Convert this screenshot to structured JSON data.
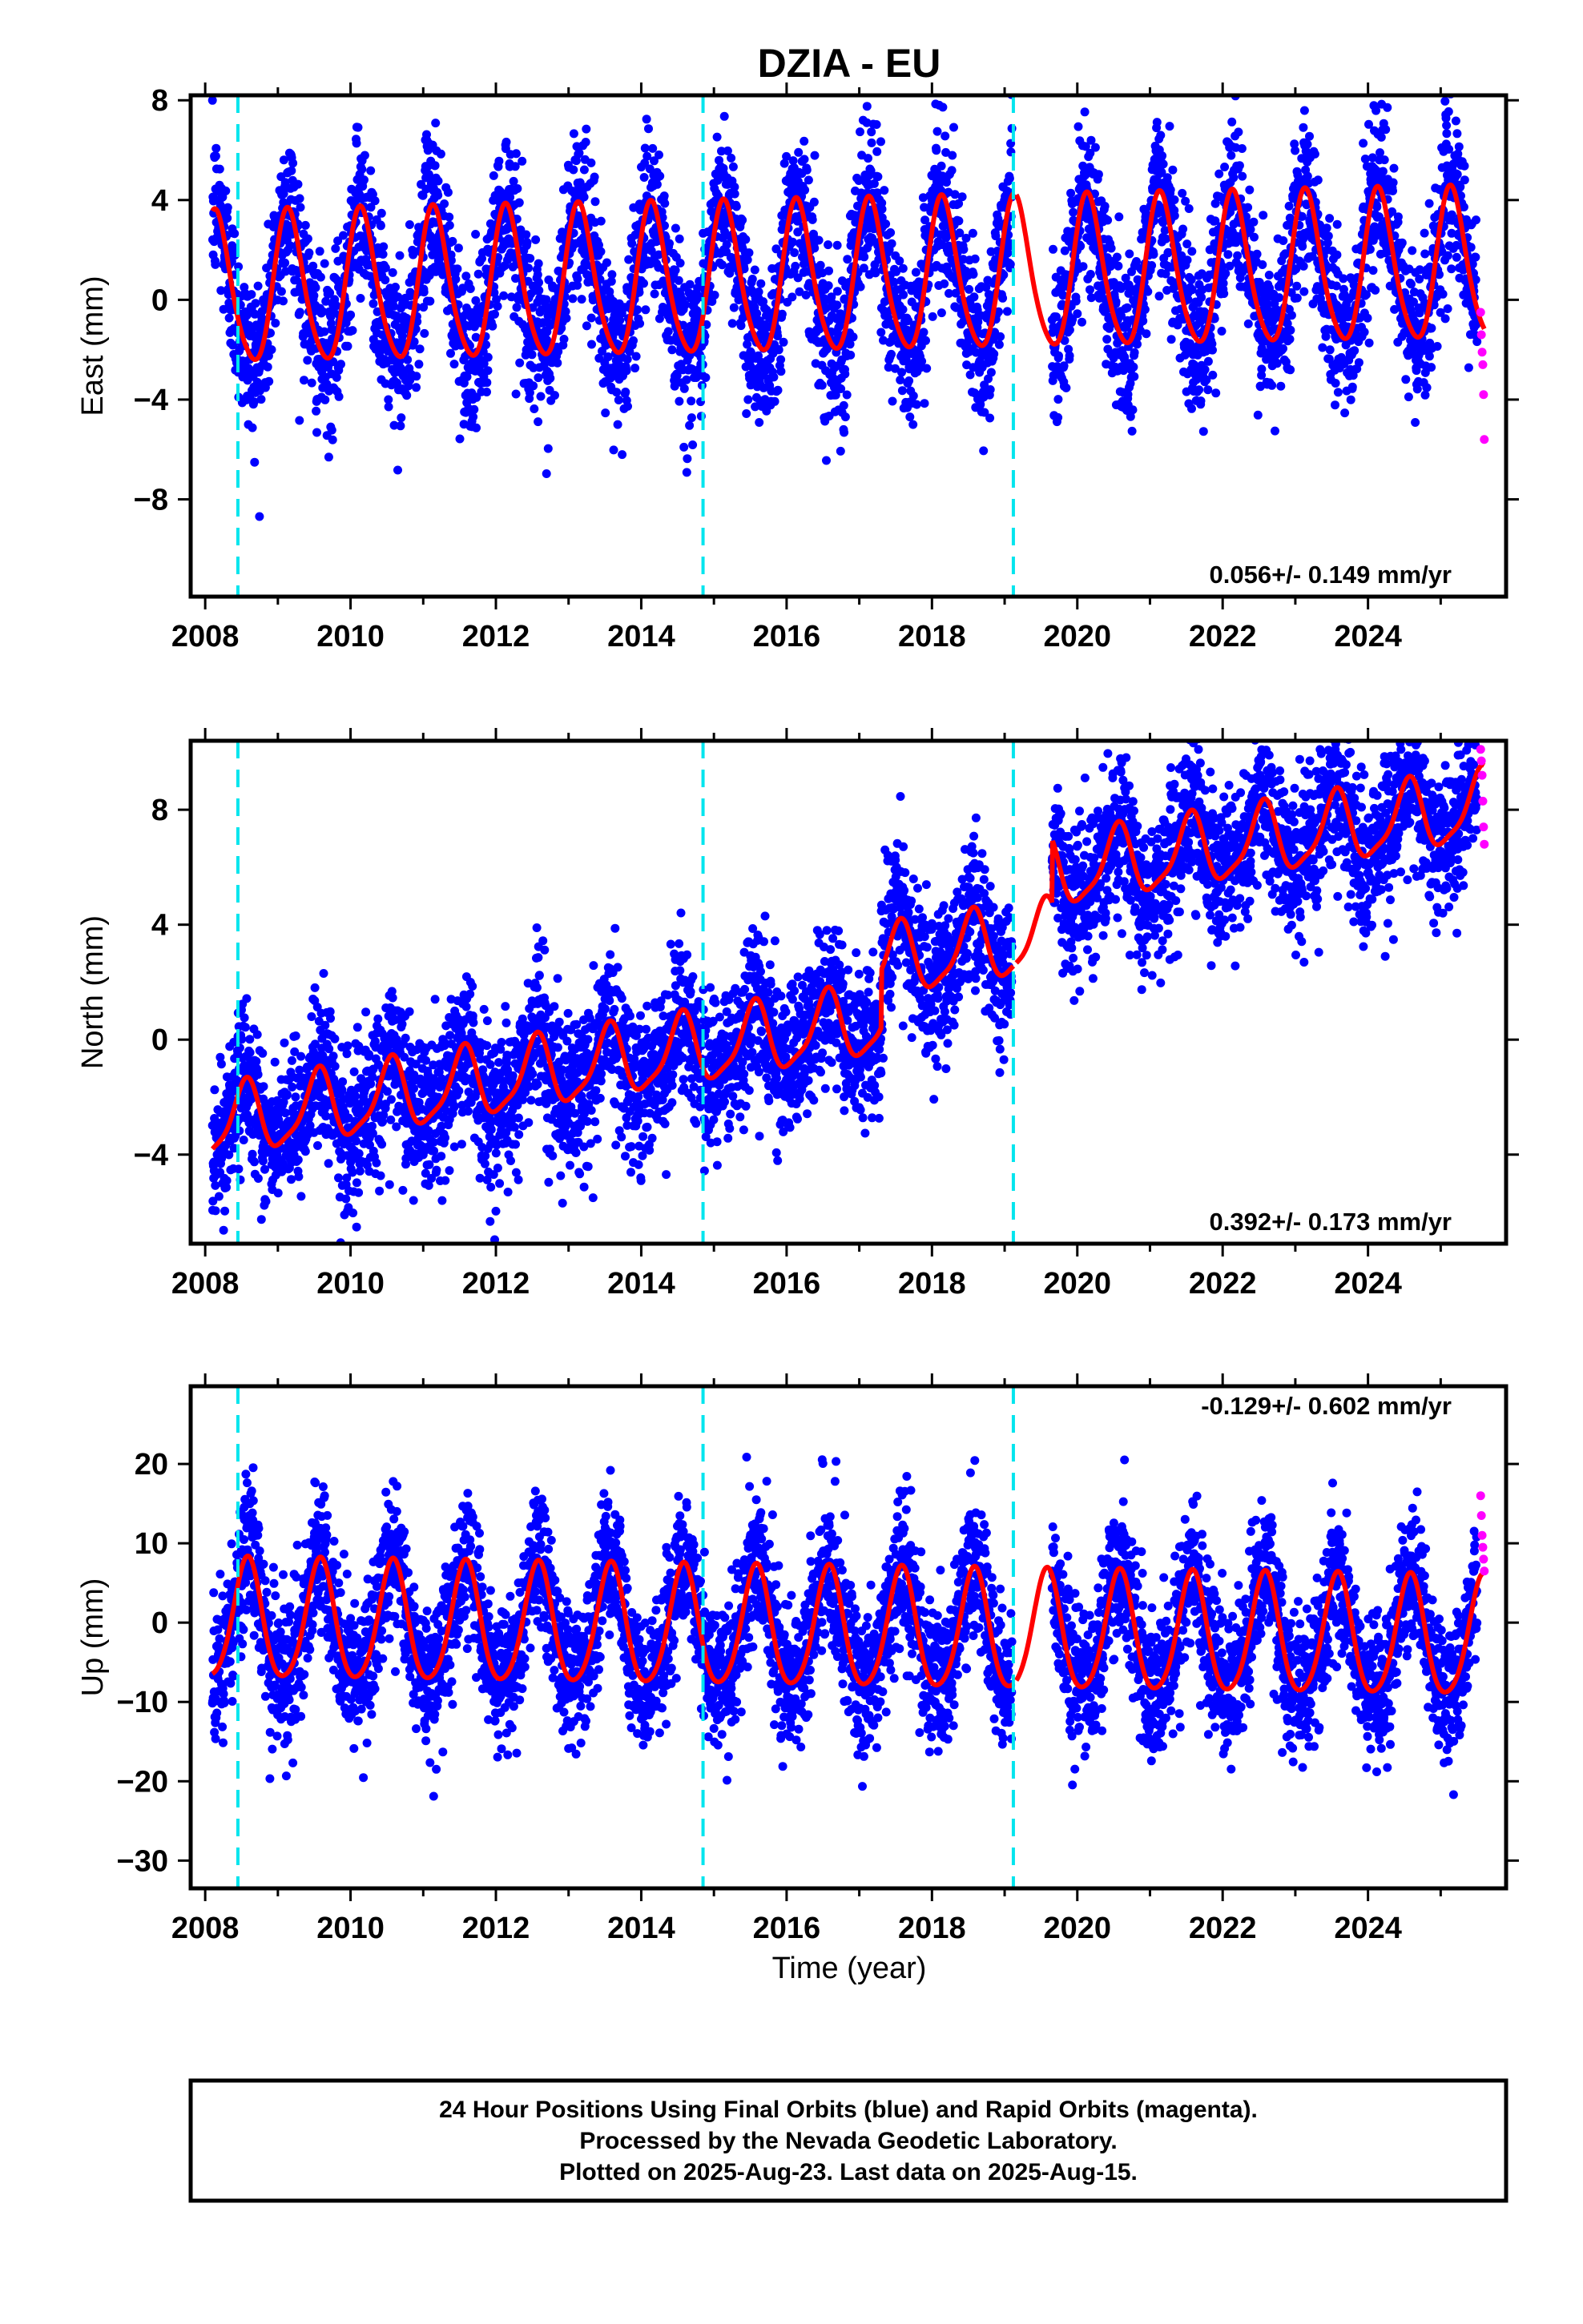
{
  "figure": {
    "title": "DZIA - EU",
    "xlabel": "Time (year)",
    "caption": [
      "24 Hour Positions Using Final Orbits (blue) and Rapid Orbits (magenta).",
      "Processed by the Nevada Geodetic Laboratory.",
      "Plotted on 2025-Aug-23. Last data on 2025-Aug-15."
    ]
  },
  "colors": {
    "final_points": "#0000ff",
    "rapid_points": "#ff00ff",
    "model": "#ff0000",
    "breaks": "#00e5ee"
  },
  "chart_data": [
    {
      "type": "scatter",
      "component": "east",
      "ylabel": "East (mm)",
      "rate_label": "0.056+/- 0.149 mm/yr",
      "xlim": [
        2007.8,
        2025.9
      ],
      "ylim": [
        -11.9,
        8.2
      ],
      "x_ticks": [
        2008,
        2010,
        2012,
        2014,
        2016,
        2018,
        2020,
        2022,
        2024
      ],
      "y_ticks": [
        8,
        4,
        0,
        -4,
        -8
      ],
      "y_tick_labels": [
        "8",
        "4",
        "0",
        "−4",
        "−8"
      ],
      "break_lines": [
        2008.45,
        2014.85,
        2019.12
      ],
      "series": [
        {
          "name": "Final Orbits",
          "style": "points",
          "color": "blue",
          "model": {
            "offset": 0.3,
            "rate": 0.056,
            "annual_amp": 3.0,
            "annual_phase": 0.15,
            "semiannual_amp": 0.4,
            "noise_sd": 1.6,
            "start": 2008.1,
            "end": 2025.5,
            "gap": [
              2019.1,
              2019.65
            ]
          }
        },
        {
          "name": "Rapid Orbits",
          "style": "points",
          "color": "magenta",
          "x": [
            2025.55,
            2025.56,
            2025.57,
            2025.58,
            2025.59,
            2025.6
          ],
          "y": [
            -0.5,
            -1.4,
            -2.1,
            -2.6,
            -3.8,
            -5.6
          ]
        },
        {
          "name": "Model",
          "style": "line",
          "color": "red",
          "x_range": [
            2008.1,
            2025.6
          ],
          "gap": [
            2019.12,
            2019.15
          ]
        }
      ]
    },
    {
      "type": "scatter",
      "component": "north",
      "ylabel": "North (mm)",
      "rate_label": "0.392+/- 0.173 mm/yr",
      "xlim": [
        2007.8,
        2025.9
      ],
      "ylim": [
        -7.1,
        10.4
      ],
      "x_ticks": [
        2008,
        2010,
        2012,
        2014,
        2016,
        2018,
        2020,
        2022,
        2024
      ],
      "y_ticks": [
        8,
        4,
        0,
        -4
      ],
      "y_tick_labels": [
        "8",
        "4",
        "0",
        "−4"
      ],
      "break_lines": [
        2008.45,
        2014.85,
        2019.12
      ],
      "series": [
        {
          "name": "Final Orbits",
          "style": "points",
          "color": "blue",
          "model": {
            "offset": -3.0,
            "rate": 0.392,
            "annual_amp": 1.2,
            "annual_phase": 0.55,
            "semiannual_amp": 0.3,
            "noise_sd": 1.3,
            "jumps": [
              [
                2017.3,
                2.0
              ],
              [
                2019.65,
                2.2
              ]
            ],
            "start": 2008.1,
            "end": 2025.5,
            "gap": [
              2019.1,
              2019.65
            ]
          }
        },
        {
          "name": "Rapid Orbits",
          "style": "points",
          "color": "magenta",
          "x": [
            2025.55,
            2025.56,
            2025.57,
            2025.58,
            2025.59,
            2025.6
          ],
          "y": [
            10.1,
            9.7,
            9.2,
            8.3,
            7.4,
            6.8
          ]
        },
        {
          "name": "Model",
          "style": "line",
          "color": "red",
          "x_range": [
            2008.1,
            2025.6
          ],
          "gap": [
            2019.12,
            2019.15
          ]
        }
      ]
    },
    {
      "type": "scatter",
      "component": "up",
      "ylabel": "Up (mm)",
      "rate_label": "-0.129+/- 0.602 mm/yr",
      "xlim": [
        2007.8,
        2025.9
      ],
      "ylim": [
        -33.5,
        29.8
      ],
      "x_ticks": [
        2008,
        2010,
        2012,
        2014,
        2016,
        2018,
        2020,
        2022,
        2024
      ],
      "y_ticks": [
        20,
        10,
        0,
        -10,
        -20,
        -30
      ],
      "y_tick_labels": [
        "20",
        "10",
        "0",
        "−10",
        "−20",
        "−30"
      ],
      "break_lines": [
        2008.45,
        2014.85,
        2019.12
      ],
      "series": [
        {
          "name": "Final Orbits",
          "style": "points",
          "color": "blue",
          "model": {
            "offset": 0.0,
            "rate": -0.129,
            "annual_amp": 7.5,
            "annual_phase": 0.58,
            "semiannual_amp": 1.0,
            "noise_sd": 4.5,
            "start": 2008.1,
            "end": 2025.5,
            "gap": [
              2019.1,
              2019.65
            ]
          }
        },
        {
          "name": "Rapid Orbits",
          "style": "points",
          "color": "magenta",
          "x": [
            2025.55,
            2025.56,
            2025.57,
            2025.58,
            2025.59,
            2025.6
          ],
          "y": [
            16.0,
            13.5,
            11.0,
            9.5,
            8.0,
            6.5
          ]
        },
        {
          "name": "Model",
          "style": "line",
          "color": "red",
          "x_range": [
            2008.1,
            2025.6
          ],
          "gap": [
            2019.12,
            2019.15
          ]
        }
      ]
    }
  ]
}
